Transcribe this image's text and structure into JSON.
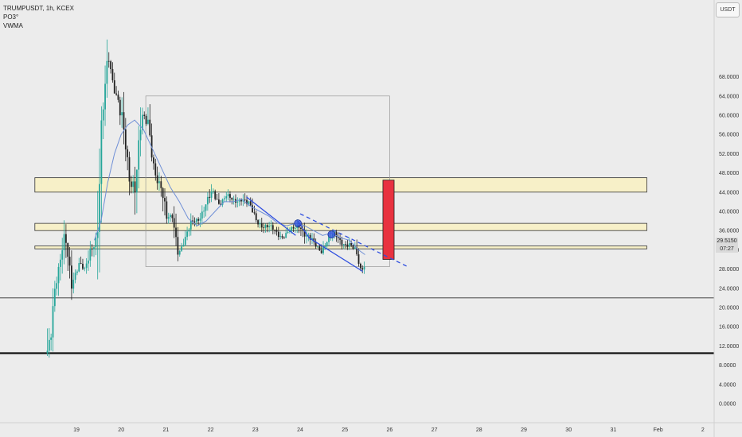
{
  "legend": {
    "symbol": "TRUMPUSDT, 1h, KCEX",
    "indicator1": "PO3°",
    "indicator2": "VWMA"
  },
  "currency_badge": "USDT",
  "price_tag": {
    "price": "29.5150",
    "countdown": "07:27"
  },
  "colors": {
    "up": "#26a69a",
    "down": "#222222",
    "zone_fill": "#f7f0c8",
    "zone_border": "#333333",
    "vwma": "#6f8fd6",
    "target": "#e8323f",
    "drawing": "#2f4fe0"
  },
  "chart_data": {
    "type": "candlestick",
    "ylim": [
      -2,
      76
    ],
    "y_ticks": [
      0,
      4,
      8,
      12,
      16,
      20,
      24,
      28,
      32,
      36,
      40,
      44,
      48,
      52,
      56,
      60,
      64,
      68
    ],
    "y_tick_labels": [
      "0.0000",
      "4.0000",
      "8.0000",
      "12.0000",
      "16.0000",
      "20.0000",
      "24.0000",
      "28.0000",
      "32.0000",
      "36.0000",
      "40.0000",
      "44.0000",
      "48.0000",
      "52.0000",
      "56.0000",
      "60.0000",
      "64.0000",
      "68.0000"
    ],
    "x_ticks": [
      "19",
      "20",
      "21",
      "22",
      "23",
      "24",
      "25",
      "26",
      "27",
      "28",
      "29",
      "30",
      "31",
      "Feb",
      "2"
    ],
    "close_path": [
      [
        18.35,
        10.5
      ],
      [
        18.5,
        24
      ],
      [
        18.6,
        27
      ],
      [
        18.75,
        34
      ],
      [
        18.9,
        26
      ],
      [
        19.05,
        29
      ],
      [
        19.2,
        27
      ],
      [
        19.3,
        32
      ],
      [
        19.45,
        35
      ],
      [
        19.6,
        60
      ],
      [
        19.72,
        72
      ],
      [
        19.85,
        66
      ],
      [
        19.95,
        63
      ],
      [
        20.1,
        52
      ],
      [
        20.2,
        45
      ],
      [
        20.3,
        47
      ],
      [
        20.45,
        60
      ],
      [
        20.6,
        57
      ],
      [
        20.75,
        49
      ],
      [
        20.9,
        45
      ],
      [
        21.0,
        38
      ],
      [
        21.15,
        39
      ],
      [
        21.3,
        32
      ],
      [
        21.45,
        34
      ],
      [
        21.6,
        38
      ],
      [
        21.75,
        39
      ],
      [
        21.9,
        41
      ],
      [
        22.05,
        44
      ],
      [
        22.2,
        42
      ],
      [
        22.35,
        43
      ],
      [
        22.5,
        42
      ],
      [
        22.7,
        43
      ],
      [
        22.85,
        41
      ],
      [
        23.0,
        38.5
      ],
      [
        23.2,
        37
      ],
      [
        23.4,
        36
      ],
      [
        23.6,
        35
      ],
      [
        23.85,
        36
      ],
      [
        24.0,
        37.5
      ],
      [
        24.15,
        35
      ],
      [
        24.3,
        33
      ],
      [
        24.45,
        32
      ],
      [
        24.6,
        34
      ],
      [
        24.75,
        35
      ],
      [
        24.9,
        34
      ],
      [
        25.1,
        33
      ],
      [
        25.25,
        31
      ],
      [
        25.35,
        28
      ],
      [
        25.45,
        29.5
      ]
    ],
    "vwma_path": [
      [
        19.4,
        34
      ],
      [
        19.55,
        38
      ],
      [
        19.7,
        46
      ],
      [
        19.85,
        52
      ],
      [
        20.0,
        56
      ],
      [
        20.15,
        58
      ],
      [
        20.3,
        59
      ],
      [
        20.5,
        57
      ],
      [
        20.7,
        53
      ],
      [
        20.9,
        49
      ],
      [
        21.1,
        45
      ],
      [
        21.3,
        42
      ],
      [
        21.5,
        38.5
      ],
      [
        21.7,
        37
      ],
      [
        21.9,
        38
      ],
      [
        22.1,
        40
      ],
      [
        22.3,
        42
      ],
      [
        22.5,
        42
      ],
      [
        22.7,
        42.5
      ],
      [
        22.9,
        41
      ],
      [
        23.1,
        40
      ],
      [
        23.3,
        39
      ],
      [
        23.5,
        37.5
      ],
      [
        23.7,
        37
      ],
      [
        23.9,
        37.5
      ],
      [
        24.1,
        37
      ],
      [
        24.3,
        36
      ],
      [
        24.5,
        35
      ],
      [
        24.7,
        35.5
      ],
      [
        24.9,
        34.5
      ],
      [
        25.1,
        34
      ],
      [
        25.3,
        32
      ],
      [
        25.45,
        31
      ]
    ],
    "zones": [
      {
        "y_low": 44,
        "y_high": 47,
        "x_start": 18.0,
        "x_end": 31.75
      },
      {
        "y_low": 36,
        "y_high": 37.5,
        "x_start": 18.0,
        "x_end": 31.75
      },
      {
        "y_low": 32.2,
        "y_high": 32.8,
        "x_start": 18.0,
        "x_end": 31.75
      }
    ],
    "horizontal_lines": [
      {
        "y": 22,
        "weight": "thin"
      },
      {
        "y": 10.5,
        "weight": "thick"
      }
    ],
    "range_box": {
      "x_start": 20.55,
      "x_end": 26.0,
      "y_low": 28.5,
      "y_high": 64
    },
    "target_bar": {
      "x_start": 25.85,
      "x_end": 26.1,
      "y_low": 30,
      "y_high": 46.5
    },
    "trend_lines": [
      {
        "from": [
          22.8,
          43
        ],
        "to": [
          23.9,
          35
        ],
        "style": "solid"
      },
      {
        "from": [
          23.95,
          38
        ],
        "to": [
          24.2,
          34.5
        ],
        "style": "solid"
      },
      {
        "from": [
          25.4,
          27.5
        ],
        "to": [
          24.2,
          34.5
        ],
        "style": "solid"
      },
      {
        "from": [
          24.0,
          39.5
        ],
        "to": [
          26.4,
          28.5
        ],
        "style": "dashed"
      }
    ],
    "markers": [
      {
        "x": 23.95,
        "y": 37.5
      },
      {
        "x": 24.7,
        "y": 35.2
      }
    ]
  }
}
